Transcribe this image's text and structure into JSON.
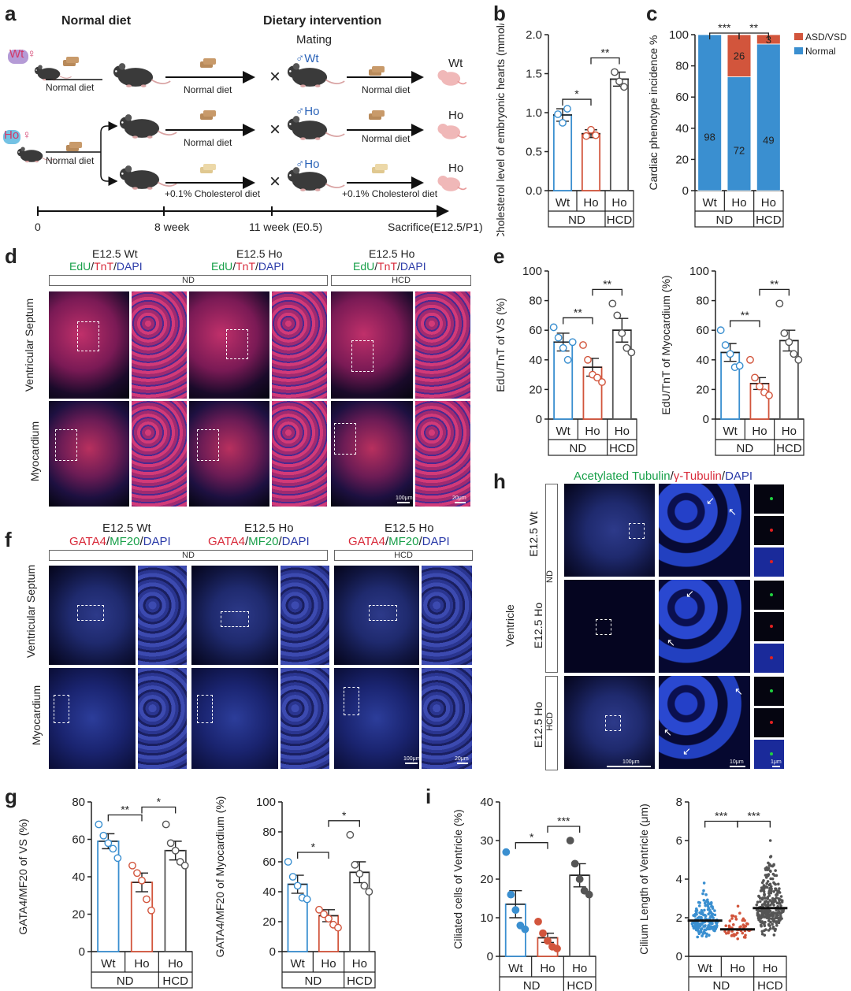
{
  "panels": [
    "a",
    "b",
    "c",
    "d",
    "e",
    "f",
    "g",
    "h",
    "i"
  ],
  "a": {
    "title_left": "Normal diet",
    "title_right": "Dietary intervention",
    "mating": "Mating",
    "wt_female": "Wt ♀",
    "ho_female": "Ho ♀",
    "male_wt": "♂Wt",
    "male_ho1": "♂Ho",
    "male_ho2": "♂Ho",
    "normal_diet": "Normal diet",
    "chol_diet": "+0.1% Cholesterol diet",
    "pup_wt": "Wt",
    "pup_ho1": "Ho",
    "pup_ho2": "Ho",
    "cross": "×",
    "timeline": [
      "0",
      "8 week",
      "11 week (E0.5)",
      "Sacrifice(E12.5/P1)"
    ]
  },
  "colors": {
    "wt": "#3a8fd0",
    "ho": "#d2553c",
    "hcd": "#555555",
    "asd": "#d2553c",
    "normal": "#3a8fd0"
  },
  "chart_data": [
    {
      "id": "b",
      "type": "bar",
      "ylabel": "Cholesterol level of embryonic hearts (mmol/grotein)",
      "categories": [
        "Wt",
        "Ho",
        "Ho"
      ],
      "groups": [
        "ND",
        "ND",
        "HCD"
      ],
      "values": [
        0.97,
        0.73,
        1.43
      ],
      "sem": [
        0.08,
        0.05,
        0.09
      ],
      "points": [
        [
          0.98,
          0.87,
          1.05
        ],
        [
          0.7,
          0.78,
          0.71
        ],
        [
          1.52,
          1.4,
          1.33
        ]
      ],
      "ylim": [
        0,
        2.0
      ],
      "yticks": [
        "0.0",
        "0.5",
        "1.0",
        "1.5",
        "2.0"
      ],
      "sig": [
        "*",
        "**"
      ]
    },
    {
      "id": "c",
      "type": "bar",
      "stacked": true,
      "ylabel": "Cardiac phenotype incidence %",
      "categories": [
        "Wt",
        "Ho",
        "Ho"
      ],
      "groups": [
        "ND",
        "ND",
        "HCD"
      ],
      "series": [
        {
          "name": "Normal",
          "values": [
            100,
            73,
            94
          ],
          "labels": [
            "98",
            "72",
            "49"
          ]
        },
        {
          "name": "ASD/VSD",
          "values": [
            0,
            27,
            6
          ],
          "labels": [
            "",
            "26",
            "3"
          ]
        }
      ],
      "ylim": [
        0,
        100
      ],
      "yticks": [
        "0",
        "20",
        "40",
        "60",
        "80",
        "100"
      ],
      "sig": [
        "***",
        "**"
      ],
      "legend": "top-right"
    },
    {
      "id": "e1",
      "type": "bar",
      "ylabel": "EdU/TnT of VS (%)",
      "categories": [
        "Wt",
        "Ho",
        "Ho"
      ],
      "groups": [
        "ND",
        "ND",
        "HCD"
      ],
      "values": [
        52,
        35,
        60
      ],
      "sem": [
        6,
        6,
        8
      ],
      "points": [
        [
          62,
          55,
          48,
          40,
          52
        ],
        [
          50,
          40,
          30,
          28,
          25
        ],
        [
          78,
          70,
          58,
          48,
          45
        ]
      ],
      "ylim": [
        0,
        100
      ],
      "yticks": [
        "0",
        "20",
        "40",
        "60",
        "80",
        "100"
      ],
      "sig": [
        "**",
        "**"
      ]
    },
    {
      "id": "e2",
      "type": "bar",
      "ylabel": "EdU/TnT of Myocardium (%)",
      "categories": [
        "Wt",
        "Ho",
        "Ho"
      ],
      "groups": [
        "ND",
        "ND",
        "HCD"
      ],
      "values": [
        45,
        24,
        53
      ],
      "sem": [
        6,
        4,
        7
      ],
      "points": [
        [
          60,
          50,
          44,
          35,
          36
        ],
        [
          40,
          28,
          22,
          18,
          16
        ],
        [
          78,
          58,
          52,
          44,
          40
        ]
      ],
      "ylim": [
        0,
        100
      ],
      "yticks": [
        "0",
        "20",
        "40",
        "60",
        "80",
        "100"
      ],
      "sig": [
        "**",
        "**"
      ]
    },
    {
      "id": "g1",
      "type": "bar",
      "ylabel": "GATA4/MF20 of VS (%)",
      "categories": [
        "Wt",
        "Ho",
        "Ho"
      ],
      "groups": [
        "ND",
        "ND",
        "HCD"
      ],
      "values": [
        59,
        37,
        54
      ],
      "sem": [
        4,
        5,
        5
      ],
      "points": [
        [
          68,
          62,
          58,
          55,
          50
        ],
        [
          46,
          42,
          38,
          28,
          22
        ],
        [
          68,
          58,
          54,
          48,
          46
        ]
      ],
      "ylim": [
        0,
        80
      ],
      "yticks": [
        "0",
        "20",
        "40",
        "60",
        "80"
      ],
      "sig": [
        "**",
        "*"
      ]
    },
    {
      "id": "g2",
      "type": "bar",
      "ylabel": "GATA4/MF20 of Myocardium (%)",
      "categories": [
        "Wt",
        "Ho",
        "Ho"
      ],
      "groups": [
        "ND",
        "ND",
        "HCD"
      ],
      "values": [
        45,
        24,
        53
      ],
      "sem": [
        6,
        4,
        7
      ],
      "points": [
        [
          60,
          50,
          44,
          36,
          35
        ],
        [
          28,
          25,
          22,
          18,
          16
        ],
        [
          78,
          58,
          52,
          44,
          40
        ]
      ],
      "ylim": [
        0,
        100
      ],
      "yticks": [
        "0",
        "20",
        "40",
        "60",
        "80",
        "100"
      ],
      "sig": [
        "*",
        "*"
      ]
    },
    {
      "id": "i1",
      "type": "bar",
      "ylabel": "Ciliated cells of Ventricle (%)",
      "categories": [
        "Wt",
        "Ho",
        "Ho"
      ],
      "groups": [
        "ND",
        "ND",
        "HCD"
      ],
      "values": [
        13.5,
        4.8,
        21
      ],
      "sem": [
        3.5,
        1.2,
        3
      ],
      "points": [
        [
          27,
          16,
          12,
          8,
          7
        ],
        [
          9,
          6,
          4,
          2.5,
          2
        ],
        [
          30,
          24,
          20,
          17,
          16
        ]
      ],
      "ylim": [
        0,
        40
      ],
      "yticks": [
        "0",
        "10",
        "20",
        "30",
        "40"
      ],
      "sig": [
        "*",
        "***"
      ]
    },
    {
      "id": "i2",
      "type": "scatter",
      "ylabel": "Cilium Length of Ventricle (μm)",
      "categories": [
        "Wt",
        "Ho",
        "Ho"
      ],
      "groups": [
        "ND",
        "ND",
        "HCD"
      ],
      "means": [
        1.85,
        1.4,
        2.5
      ],
      "ranges": [
        [
          0.8,
          3.8
        ],
        [
          0.7,
          2.6
        ],
        [
          0.9,
          6.0
        ]
      ],
      "counts": [
        160,
        55,
        280
      ],
      "ylim": [
        0,
        8
      ],
      "yticks": [
        "0",
        "2",
        "4",
        "6",
        "8"
      ],
      "sig": [
        "***",
        "***"
      ]
    }
  ],
  "d": {
    "col_titles": [
      "E12.5 Wt",
      "E12.5 Ho",
      "E12.5 Ho"
    ],
    "stain_parts": [
      "EdU",
      "/",
      "TnT",
      "/",
      "DAPI"
    ],
    "cond_nd": "ND",
    "cond_hcd": "HCD",
    "rows": [
      "Ventricular Septum",
      "Myocardium"
    ],
    "scale_big": "100μm",
    "scale_small": "20μm"
  },
  "f": {
    "col_titles": [
      "E12.5 Wt",
      "E12.5 Ho",
      "E12.5 Ho"
    ],
    "stain_parts": [
      "GATA4",
      "/",
      "MF20",
      "/",
      "DAPI"
    ],
    "cond_nd": "ND",
    "cond_hcd": "HCD",
    "rows": [
      "Ventricular Septum",
      "Myocardium"
    ],
    "scale_big": "100μm",
    "scale_small": "20μm"
  },
  "h": {
    "stain_parts": [
      "Acetylated Tubulin",
      "/",
      "γ-Tubulin",
      "/",
      "DAPI"
    ],
    "row_labels": [
      "E12.5 Wt",
      "E12.5 Ho",
      "E12.5 Ho"
    ],
    "cond_nd": "ND",
    "cond_hcd": "HCD",
    "side_label": "Ventricle",
    "scale_big": "100μm",
    "scale_mid": "10μm",
    "scale_small": "1μm"
  }
}
